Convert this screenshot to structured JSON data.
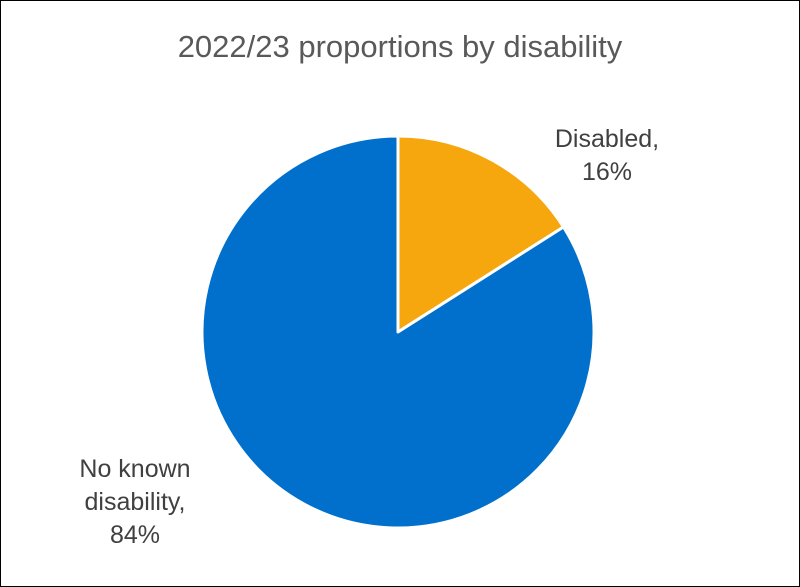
{
  "chart_data": {
    "type": "pie",
    "title": "2022/23 proportions by disability",
    "categories": [
      "Disabled",
      "No known disability"
    ],
    "values": [
      16,
      84
    ],
    "unit": "%",
    "colors": [
      "#F5A70D",
      "#0070CC"
    ],
    "data_labels": [
      [
        "Disabled,",
        "16%"
      ],
      [
        "No known",
        "disability,",
        "84%"
      ]
    ],
    "legend": "none"
  }
}
